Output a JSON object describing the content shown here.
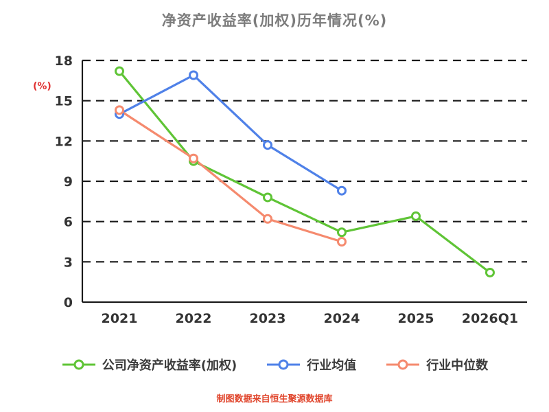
{
  "title": "净资产收益率(加权)历年情况(%)",
  "y_axis_label": "(%)",
  "footer": "制图数据来自恒生聚源数据库",
  "chart_data": {
    "type": "line",
    "title": "净资产收益率(加权)历年情况(%)",
    "ylabel": "(%)",
    "categories": [
      "2021",
      "2022",
      "2023",
      "2024",
      "2025",
      "2026Q1"
    ],
    "series": [
      {
        "name": "公司净资产收益率(加权)",
        "color": "#5fc436",
        "values": [
          17.2,
          10.5,
          7.8,
          5.2,
          6.4,
          2.2
        ]
      },
      {
        "name": "行业均值",
        "color": "#4f81e8",
        "values": [
          14.0,
          16.9,
          11.7,
          8.3,
          null,
          null
        ]
      },
      {
        "name": "行业中位数",
        "color": "#f58a6e",
        "values": [
          14.3,
          10.7,
          6.2,
          4.5,
          null,
          null
        ]
      }
    ],
    "ylim": [
      0,
      18
    ],
    "yticks": [
      0,
      3,
      6,
      9,
      12,
      15,
      18
    ],
    "grid": "dashed-horizontal",
    "legend_position": "bottom",
    "marker": "open-circle"
  }
}
